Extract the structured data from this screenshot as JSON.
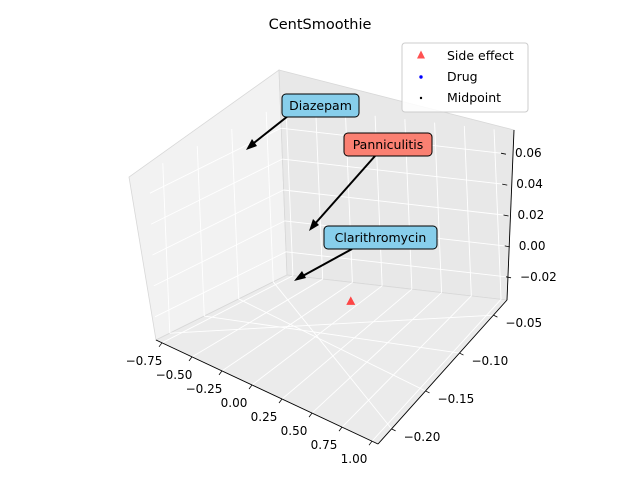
{
  "chart_data": {
    "type": "scatter",
    "projection": "3d",
    "title": "CentSmoothie",
    "xlabel": "",
    "ylabel": "",
    "zlabel": "",
    "xlim": [
      -0.8,
      1.05
    ],
    "ylim": [
      -0.22,
      -0.03
    ],
    "zlim": [
      -0.035,
      0.075
    ],
    "x_ticks": [
      -0.75,
      -0.5,
      -0.25,
      0.0,
      0.25,
      0.5,
      0.75,
      1.0
    ],
    "x_tick_labels": [
      "−0.75",
      "−0.50",
      "−0.25",
      "0.00",
      "0.25",
      "0.50",
      "0.75",
      "1.00"
    ],
    "y_ticks": [
      -0.05,
      -0.1,
      -0.15,
      -0.2
    ],
    "y_tick_labels": [
      "−0.05",
      "−0.10",
      "−0.15",
      "−0.20"
    ],
    "z_ticks": [
      -0.02,
      0.0,
      0.02,
      0.04,
      0.06
    ],
    "z_tick_labels": [
      "−0.02",
      "0.00",
      "0.02",
      "0.04",
      "0.06"
    ],
    "grid": true,
    "legend_position": "top-right",
    "colors": {
      "side_effect": "#ff3333",
      "drug": "#0000ff",
      "midpoint": "#000000",
      "edge": "#808080",
      "drug_label_bg": "#87ceeb",
      "side_effect_label_bg": "#fa8072"
    },
    "series": [
      {
        "name": "Side effect",
        "marker": "triangle",
        "points": [
          [
            0.45,
            -0.1,
            0.02
          ]
        ]
      },
      {
        "name": "Drug",
        "marker": "dot",
        "points": []
      },
      {
        "name": "Midpoint",
        "marker": "dot",
        "points": []
      }
    ],
    "annotations": [
      {
        "text": "Diazepam",
        "kind": "drug"
      },
      {
        "text": "Panniculitis",
        "kind": "side_effect"
      },
      {
        "text": "Clarithromycin",
        "kind": "drug"
      }
    ]
  }
}
